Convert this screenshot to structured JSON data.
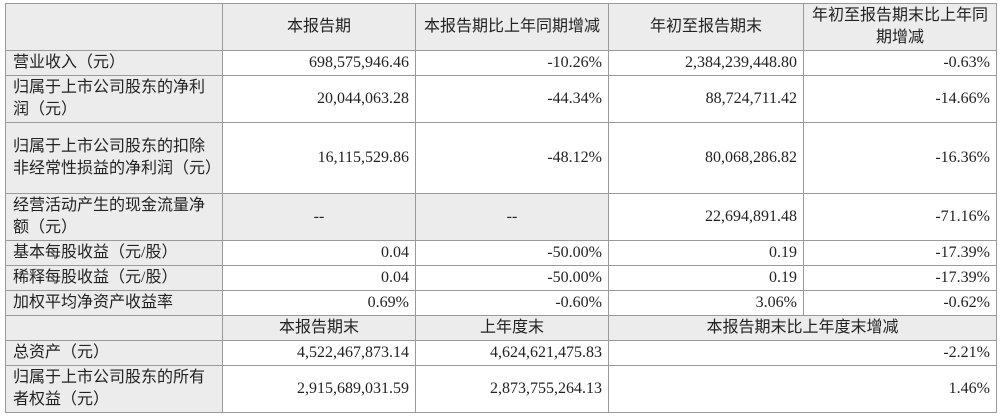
{
  "header": [
    "",
    "本报告期",
    "本报告期比上年同期增减",
    "年初至报告期末",
    "年初至报告期末比上年同期增减"
  ],
  "rows": [
    {
      "label": "营业收入（元）",
      "values": [
        "698,575,946.46",
        "-10.26%",
        "2,384,239,448.80",
        "-0.63%"
      ]
    },
    {
      "label": "归属于上市公司股东的净利润（元）",
      "values": [
        "20,044,063.28",
        "-44.34%",
        "88,724,711.42",
        "-14.66%"
      ]
    },
    {
      "label": "归属于上市公司股东的扣除非经常性损益的净利润（元）",
      "values": [
        "16,115,529.86",
        "-48.12%",
        "80,068,286.82",
        "-16.36%"
      ]
    },
    {
      "label": "经营活动产生的现金流量净额（元）",
      "values": [
        "--",
        "--",
        "22,694,891.48",
        "-71.16%"
      ]
    },
    {
      "label": "基本每股收益（元/股）",
      "values": [
        "0.04",
        "-50.00%",
        "0.19",
        "-17.39%"
      ]
    },
    {
      "label": "稀释每股收益（元/股）",
      "values": [
        "0.04",
        "-50.00%",
        "0.19",
        "-17.39%"
      ]
    },
    {
      "label": "加权平均净资产收益率",
      "values": [
        "0.69%",
        "-0.60%",
        "3.06%",
        "-0.62%"
      ]
    }
  ],
  "header2": [
    "",
    "本报告期末",
    "上年度末",
    "本报告期末比上年度末增减"
  ],
  "rows2": [
    {
      "label": "总资产（元）",
      "values": [
        "4,522,467,873.14",
        "4,624,621,475.83",
        "-2.21%"
      ]
    },
    {
      "label": "归属于上市公司股东的所有者权益（元）",
      "values": [
        "2,915,689,031.59",
        "2,873,755,264.13",
        "1.46%"
      ]
    }
  ]
}
